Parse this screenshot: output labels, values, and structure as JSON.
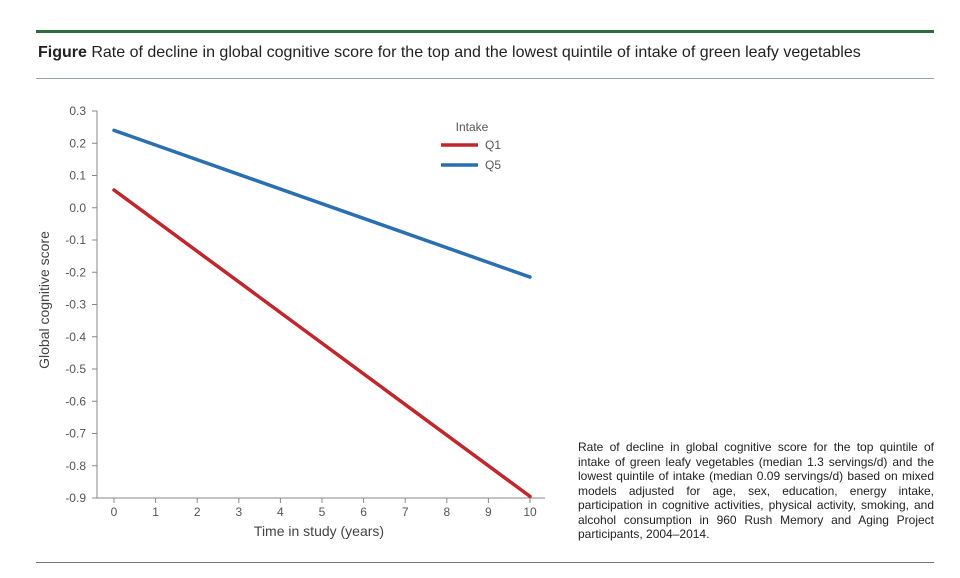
{
  "figure": {
    "label": "Figure",
    "title": "Rate of decline in global cognitive score for the top and the lowest quintile of intake of green leafy vegetables",
    "caption": "Rate of decline in global cognitive score for the top quintile of intake of green leafy vegetables (median 1.3 servings/d) and the lowest quintile of intake (median 0.09 servings/d) based on mixed models adjusted for age, sex, education, energy intake, participation in cognitive activities, physical activity, smoking, and alcohol consumption in 960 Rush Memory and Aging Project participants, 2004–2014.",
    "rule_color": "#2e6b3a"
  },
  "chart_data": {
    "type": "line",
    "title": "",
    "xlabel": "Time in study (years)",
    "ylabel": "Global cognitive score",
    "x_ticks": [
      0,
      1,
      2,
      3,
      4,
      5,
      6,
      7,
      8,
      9,
      10
    ],
    "y_ticks": [
      0.3,
      0.2,
      0.1,
      0.0,
      -0.1,
      -0.2,
      -0.3,
      -0.4,
      -0.5,
      -0.6,
      -0.7,
      -0.8,
      -0.9
    ],
    "y_tick_labels": [
      "0.3",
      "0.2",
      "0.1",
      "0.0",
      "-0.1",
      "-0.2",
      "-0.3",
      "-0.4",
      "-0.5",
      "-0.6",
      "-0.7",
      "-0.8",
      "-0.9"
    ],
    "xlim": [
      0,
      10
    ],
    "ylim": [
      -0.9,
      0.3
    ],
    "grid": false,
    "legend": {
      "title": "Intake",
      "position": "top-center"
    },
    "series": [
      {
        "name": "Q1",
        "color": "#c0272d",
        "x": [
          0,
          10
        ],
        "y": [
          0.055,
          -0.895
        ]
      },
      {
        "name": "Q5",
        "color": "#2a6faf",
        "x": [
          0,
          10
        ],
        "y": [
          0.24,
          -0.215
        ]
      }
    ]
  }
}
